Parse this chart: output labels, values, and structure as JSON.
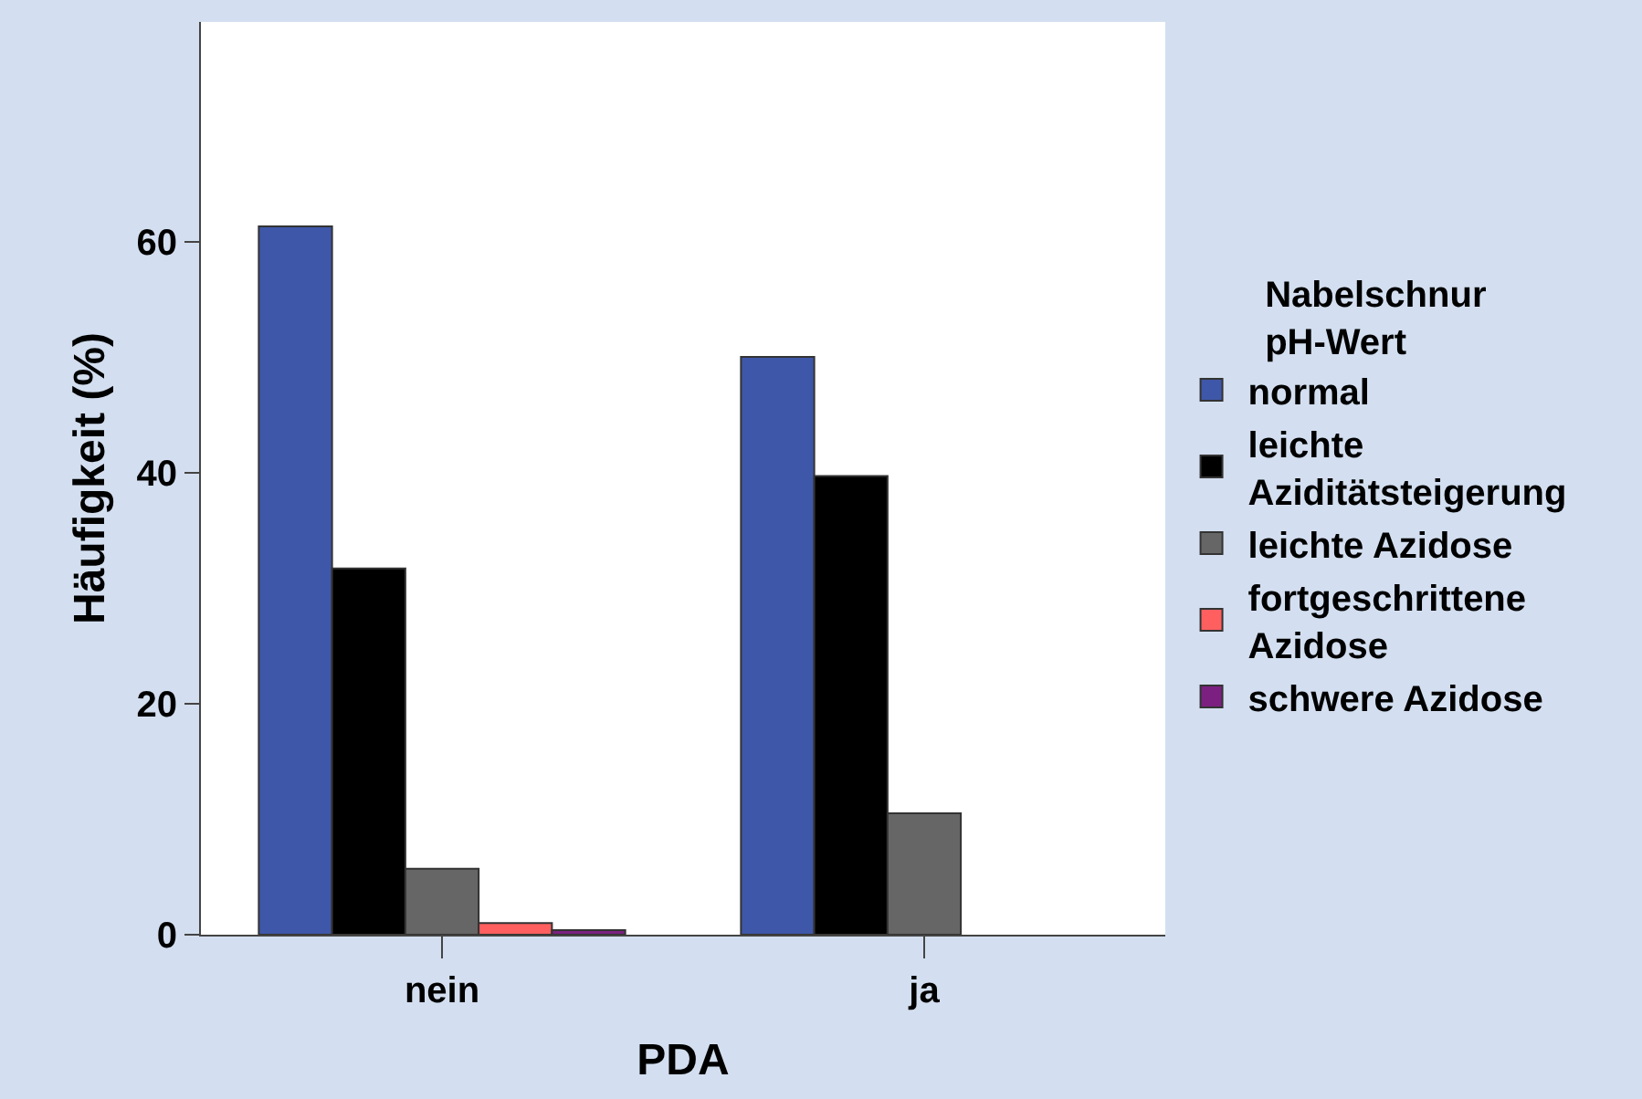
{
  "chart_data": {
    "type": "bar",
    "xlabel": "PDA",
    "ylabel": "Häufigkeit (%)",
    "legend_title": "Nabelschnur pH-Wert",
    "categories": [
      "nein",
      "ja"
    ],
    "series": [
      {
        "name": "normal",
        "color": "#3f57a8",
        "values": [
          61.3,
          50
        ]
      },
      {
        "name": "leichte Aziditätsteigerung",
        "color": "#000000",
        "values": [
          31.7,
          39.7
        ]
      },
      {
        "name": "leichte Azidose",
        "color": "#666666",
        "values": [
          5.7,
          10.5
        ]
      },
      {
        "name": "fortgeschrittene Azidose",
        "color": "#ff5f5f",
        "values": [
          1,
          null
        ]
      },
      {
        "name": "schwere Azidose",
        "color": "#7b2080",
        "values": [
          0.4,
          null
        ]
      }
    ],
    "ylim": [
      0,
      79
    ],
    "yticks": [
      0,
      20,
      40,
      60
    ],
    "grid": false,
    "legend": "right"
  }
}
